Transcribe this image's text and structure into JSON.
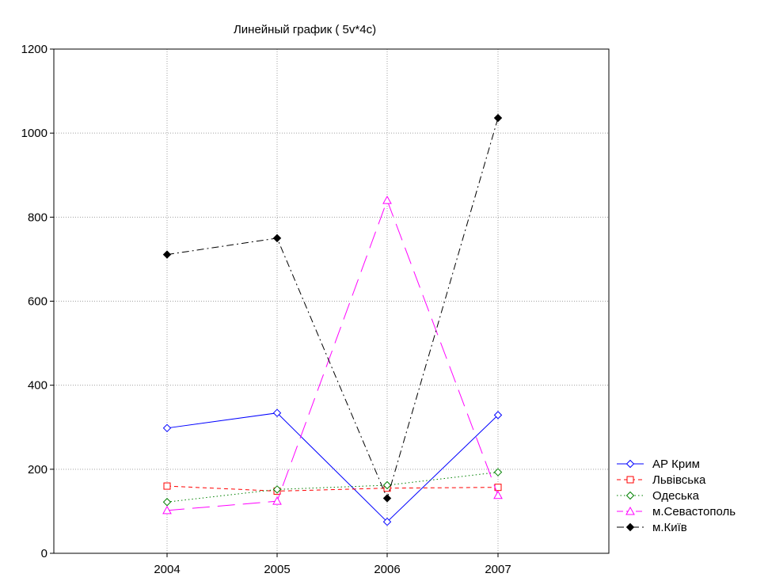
{
  "colors": {
    "background": "#FFFFFF",
    "plot_background": "#FFFFFF",
    "axis": "#000000",
    "grid": "#A0A0A0"
  },
  "chart_data": {
    "type": "line",
    "title": "Линейный график ( 5v*4c)",
    "xlabel": "",
    "ylabel": "",
    "categories": [
      "2004",
      "2005",
      "2006",
      "2007"
    ],
    "ylim": [
      0,
      1200
    ],
    "yticks": [
      0,
      200,
      400,
      600,
      800,
      1000,
      1200
    ],
    "grid": true,
    "legend_position": "right-bottom",
    "series": [
      {
        "name": "АР Крим",
        "values": [
          298,
          334,
          75,
          329
        ],
        "color": "#0000FF",
        "dash": "solid",
        "marker": "diamond-open"
      },
      {
        "name": "Львівська",
        "values": [
          160,
          148,
          155,
          157
        ],
        "color": "#FF0000",
        "dash": "dashed",
        "marker": "square-open"
      },
      {
        "name": "Одеська",
        "values": [
          122,
          152,
          162,
          193
        ],
        "color": "#008000",
        "dash": "dotted",
        "marker": "diamond-open"
      },
      {
        "name": "м.Севастополь",
        "values": [
          102,
          124,
          840,
          138
        ],
        "color": "#FF00FF",
        "dash": "long-dash",
        "marker": "triangle-open"
      },
      {
        "name": "м.Київ",
        "values": [
          711,
          750,
          131,
          1036
        ],
        "color": "#000000",
        "dash": "dash-dot",
        "marker": "diamond-filled"
      }
    ]
  }
}
